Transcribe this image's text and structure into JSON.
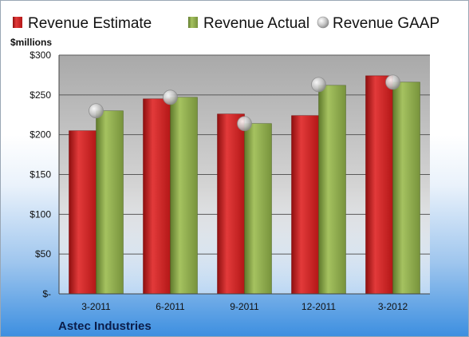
{
  "chart_data": {
    "type": "bar",
    "company": "Astec Industries",
    "ylabel": "$millions",
    "categories": [
      "3-2011",
      "6-2011",
      "9-2011",
      "12-2011",
      "3-2012"
    ],
    "series": [
      {
        "name": "Revenue Estimate",
        "kind": "bar",
        "color": "#cc1f1f",
        "values": [
          205,
          245,
          226,
          224,
          274
        ]
      },
      {
        "name": "Revenue Actual",
        "kind": "bar",
        "color": "#8aa84a",
        "values": [
          230,
          247,
          214,
          262,
          266
        ]
      },
      {
        "name": "Revenue GAAP",
        "kind": "marker",
        "color": "#c8c8c8",
        "values": [
          230,
          247,
          214,
          263,
          266
        ]
      }
    ],
    "ylim": [
      0,
      300
    ],
    "yticks": [
      0,
      50,
      100,
      150,
      200,
      250,
      300
    ],
    "ytick_labels": [
      "$-",
      "$50",
      "$100",
      "$150",
      "$200",
      "$250",
      "$300"
    ],
    "grid": true,
    "legend_position": "top"
  }
}
